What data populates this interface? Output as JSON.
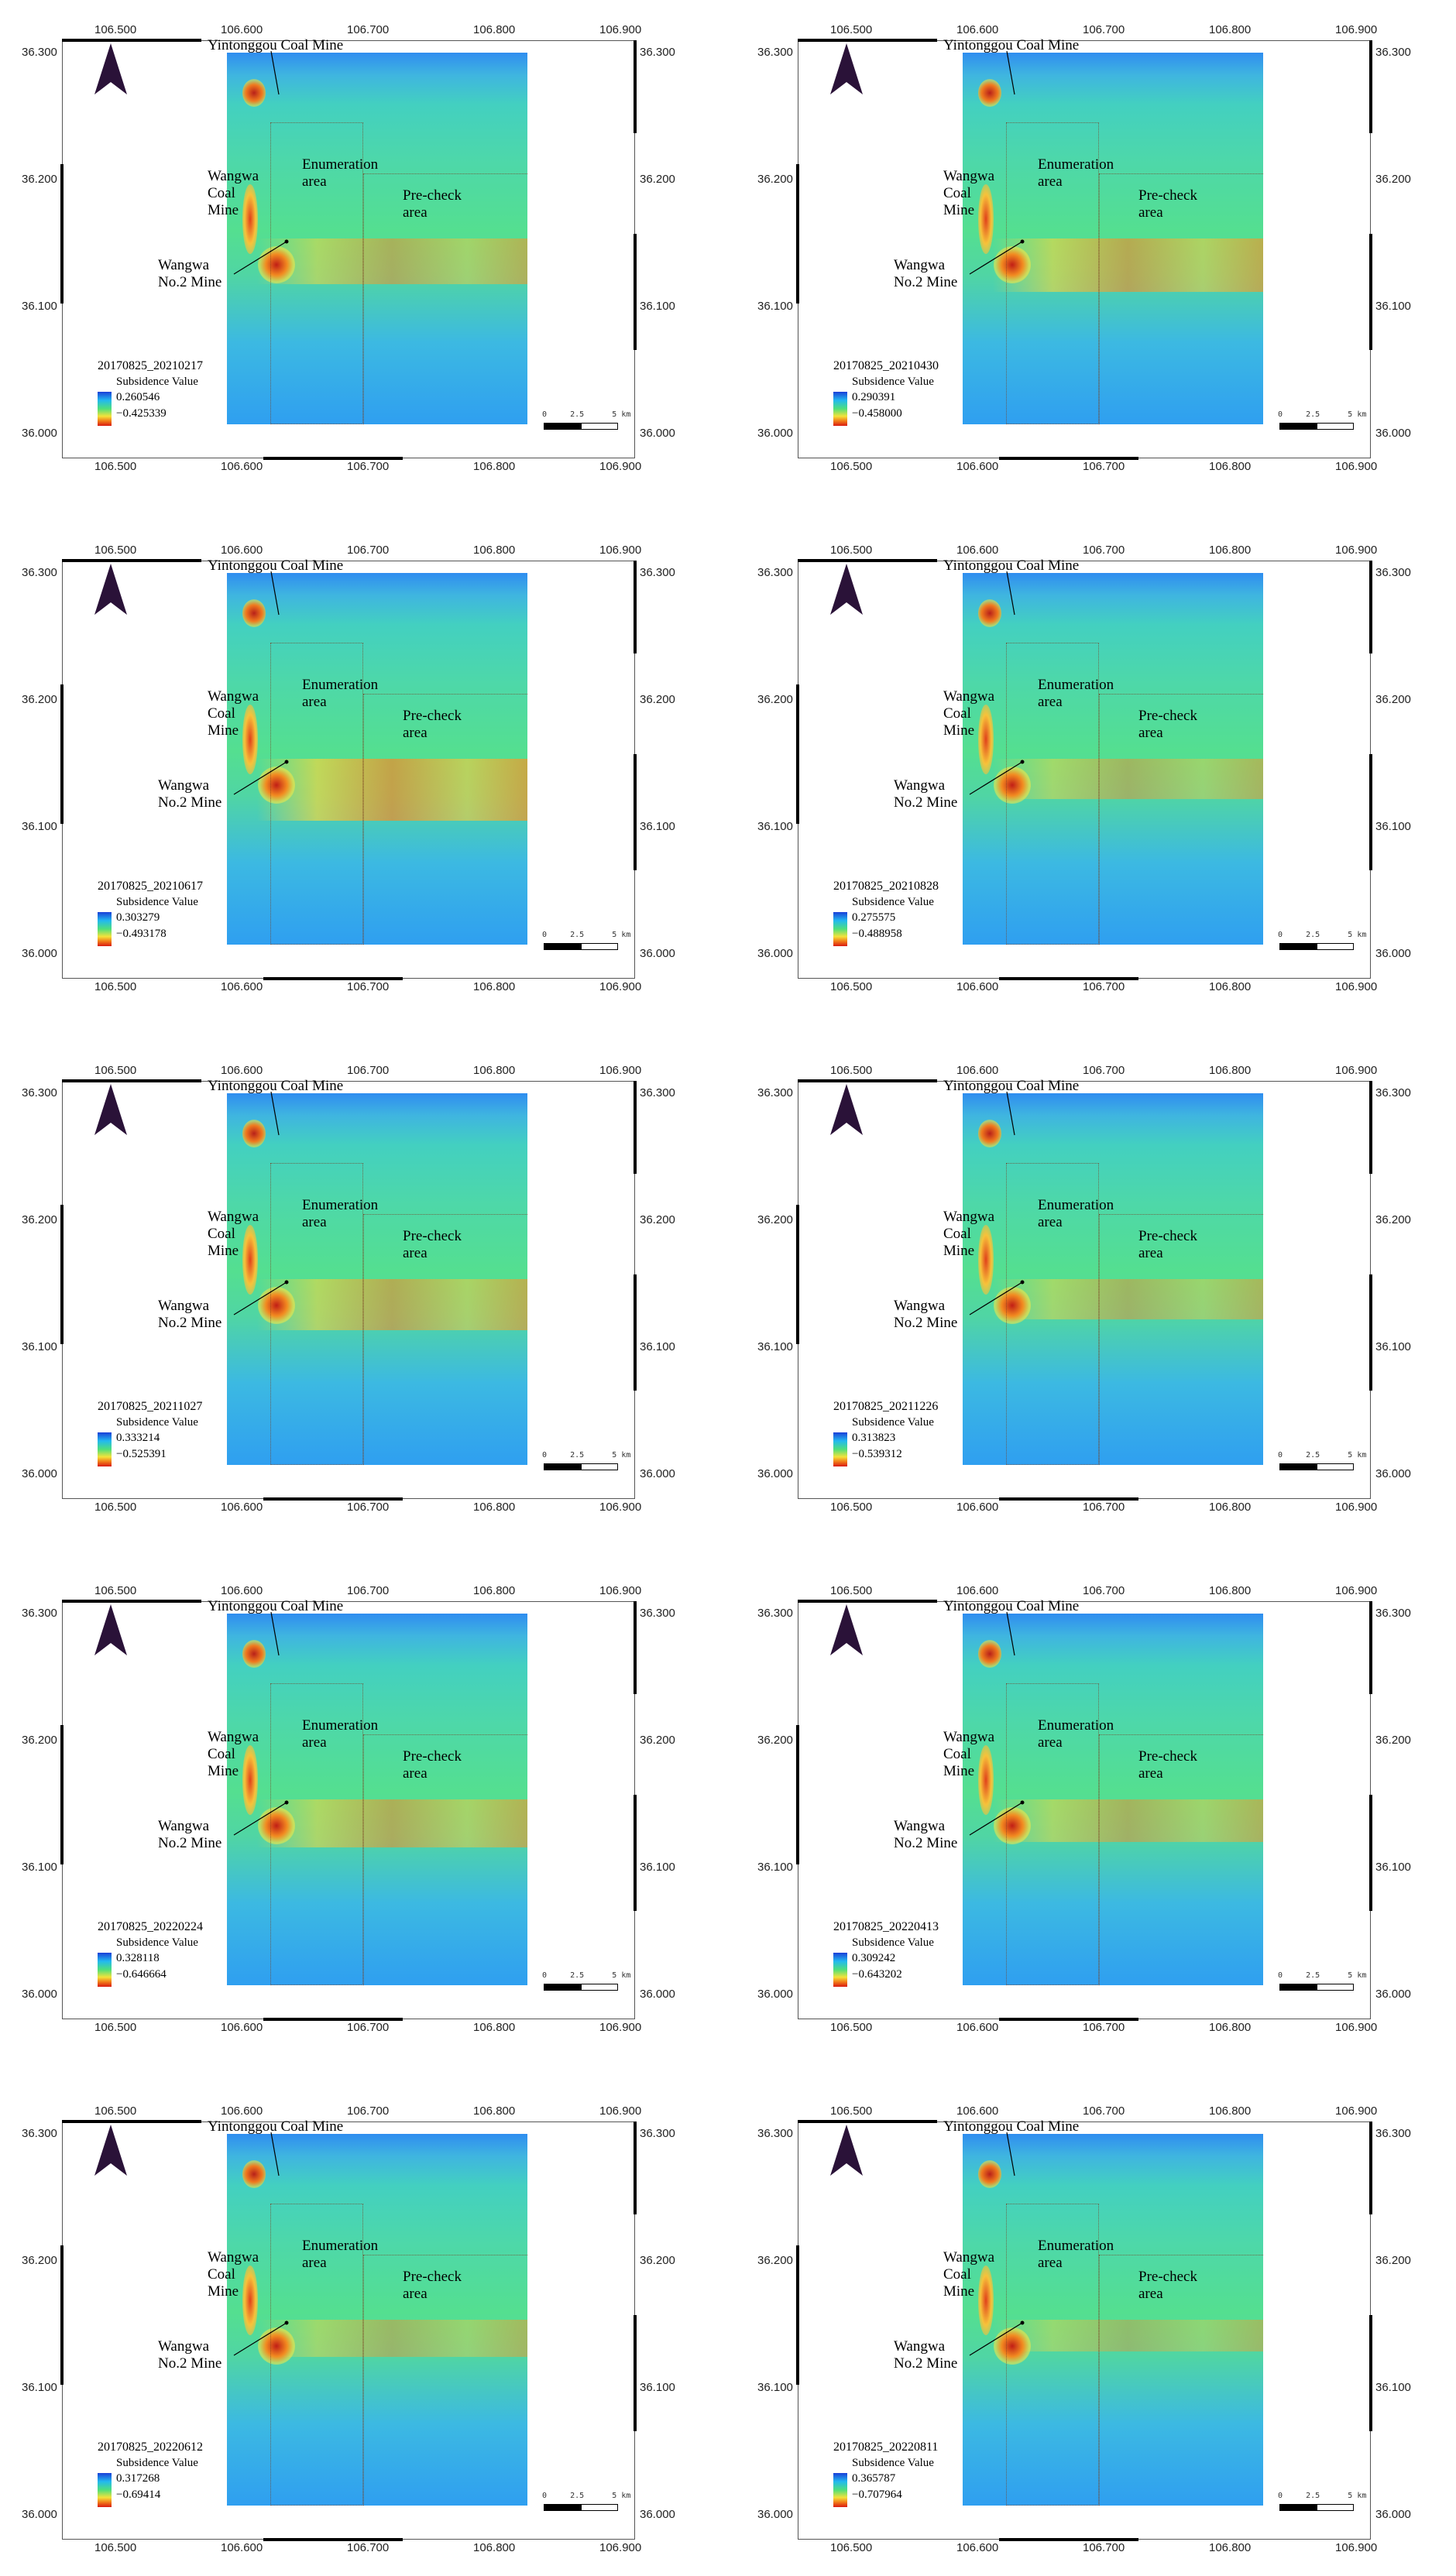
{
  "axis": {
    "lon_ticks": [
      "106.500",
      "106.600",
      "106.700",
      "106.800",
      "106.900"
    ],
    "lat_ticks": [
      "36.300",
      "36.200",
      "36.100",
      "36.000"
    ]
  },
  "labels": {
    "yintonggou": "Yintonggou Coal Mine",
    "wangwa_line1": "Wangwa",
    "wangwa_line2": "Coal",
    "wangwa_line3": "Mine",
    "enumeration_line1": "Enumeration",
    "enumeration_line2": "area",
    "precheck_line1": "Pre-check",
    "precheck_line2": "area",
    "no2_line1": "Wangwa",
    "no2_line2": "No.2 Mine",
    "legend_subtitle": "Subsidence Value"
  },
  "scale": {
    "text": "0     2.5      5 km"
  },
  "colors": {
    "low": "#1a3fd8",
    "mid": "#4fe07a",
    "high": "#d91a12",
    "background_map": "#4ed8a8"
  },
  "panels": [
    {
      "title": "20170825_20210217",
      "max": "0.260546",
      "min": "−0.425339",
      "band": 0.55
    },
    {
      "title": "20170825_20210430",
      "max": "0.290391",
      "min": "−0.458000",
      "band": 0.7
    },
    {
      "title": "20170825_20210617",
      "max": "0.303279",
      "min": "−0.493178",
      "band": 0.85
    },
    {
      "title": "20170825_20210828",
      "max": "0.275575",
      "min": "−0.488958",
      "band": 0.45
    },
    {
      "title": "20170825_20211027",
      "max": "0.333214",
      "min": "−0.525391",
      "band": 0.65
    },
    {
      "title": "20170825_20211226",
      "max": "0.313823",
      "min": "−0.539312",
      "band": 0.45
    },
    {
      "title": "20170825_20220224",
      "max": "0.328118",
      "min": "−0.646664",
      "band": 0.6
    },
    {
      "title": "20170825_20220413",
      "max": "0.309242",
      "min": "−0.643202",
      "band": 0.5
    },
    {
      "title": "20170825_20220612",
      "max": "0.317268",
      "min": "−0.69414",
      "band": 0.4
    },
    {
      "title": "20170825_20220811",
      "max": "0.365787",
      "min": "−0.707964",
      "band": 0.3
    }
  ]
}
